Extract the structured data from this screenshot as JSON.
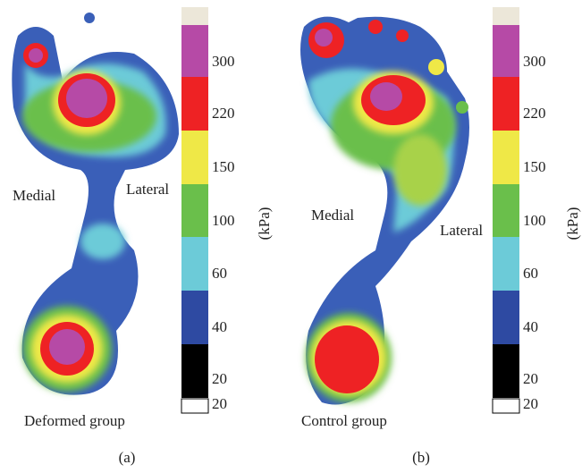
{
  "panels": [
    {
      "medial": "Medial",
      "lateral": "Lateral",
      "group": "Deformed group",
      "caption": "(a)",
      "unit": "(kPa)",
      "scale": {
        "colors": [
          "#ece7d9",
          "#b64aa6",
          "#ee2224",
          "#efe847",
          "#6abf4b",
          "#6ccbd8",
          "#2e4aa2",
          "#000000"
        ],
        "labels": [
          300,
          220,
          150,
          100,
          60,
          40,
          20,
          20
        ]
      }
    },
    {
      "medial": "Medial",
      "lateral": "Lateral",
      "group": "Control group",
      "caption": "(b)",
      "unit": "(kPa)",
      "scale": {
        "colors": [
          "#ece7d9",
          "#b64aa6",
          "#ee2224",
          "#efe847",
          "#6abf4b",
          "#6ccbd8",
          "#2e4aa2",
          "#000000"
        ],
        "labels": [
          300,
          220,
          150,
          100,
          60,
          40,
          20,
          20
        ]
      }
    }
  ]
}
